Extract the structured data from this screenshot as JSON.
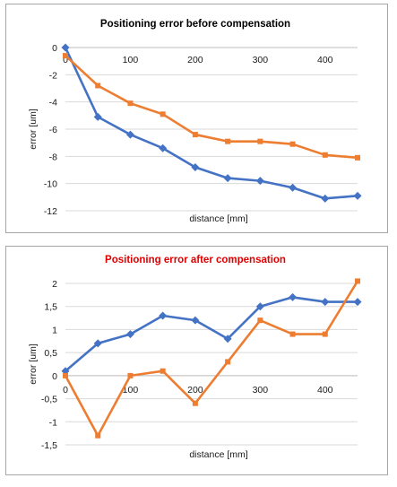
{
  "chart_data": [
    {
      "type": "line",
      "title": "Positioning error before compensation",
      "title_color": "#000000",
      "xlabel": "distance [mm]",
      "ylabel": "error [um]",
      "xlim": [
        0,
        450
      ],
      "ylim": [
        -12,
        0
      ],
      "xticks": [
        0,
        100,
        200,
        300,
        400
      ],
      "xtick_labels": [
        "0",
        "100",
        "200",
        "300",
        "400"
      ],
      "yticks": [
        0,
        -2,
        -4,
        -6,
        -8,
        -10,
        -12
      ],
      "ytick_labels": [
        "0",
        "-2",
        "-4",
        "-6",
        "-8",
        "-10",
        "-12"
      ],
      "grid": true,
      "legend": "none",
      "x": [
        0,
        50,
        100,
        150,
        200,
        250,
        300,
        350,
        400,
        450
      ],
      "series": [
        {
          "color": "#4472c4",
          "marker": "diamond",
          "values": [
            0,
            -5.1,
            -6.4,
            -7.4,
            -8.8,
            -9.6,
            -9.8,
            -10.3,
            -11.1,
            -10.9
          ]
        },
        {
          "color": "#ed7d31",
          "marker": "square",
          "values": [
            -0.6,
            -2.8,
            -4.1,
            -4.9,
            -6.4,
            -6.9,
            -6.9,
            -7.1,
            -7.9,
            -8.1
          ]
        }
      ]
    },
    {
      "type": "line",
      "title": "Positioning error after compensation",
      "title_color": "#e00000",
      "xlabel": "distance [mm]",
      "ylabel": "error [um]",
      "xlim": [
        0,
        450
      ],
      "ylim": [
        -1.5,
        2
      ],
      "xticks": [
        0,
        100,
        200,
        300,
        400
      ],
      "xtick_labels": [
        "0",
        "100",
        "200",
        "300",
        "400"
      ],
      "yticks": [
        2,
        1.5,
        1,
        0.5,
        0,
        -0.5,
        -1,
        -1.5
      ],
      "ytick_labels": [
        "2",
        "1,5",
        "1",
        "0,5",
        "0",
        "-0,5",
        "-1",
        "-1,5"
      ],
      "grid": true,
      "legend": "none",
      "x": [
        0,
        50,
        100,
        150,
        200,
        250,
        300,
        350,
        400,
        450
      ],
      "series": [
        {
          "color": "#4472c4",
          "marker": "diamond",
          "values": [
            0.1,
            0.7,
            0.9,
            1.3,
            1.2,
            0.8,
            1.5,
            1.7,
            1.6,
            1.6
          ]
        },
        {
          "color": "#ed7d31",
          "marker": "square",
          "values": [
            0,
            -1.3,
            0,
            0.1,
            -0.6,
            0.3,
            1.2,
            0.9,
            0.9,
            2.05
          ]
        }
      ]
    }
  ]
}
